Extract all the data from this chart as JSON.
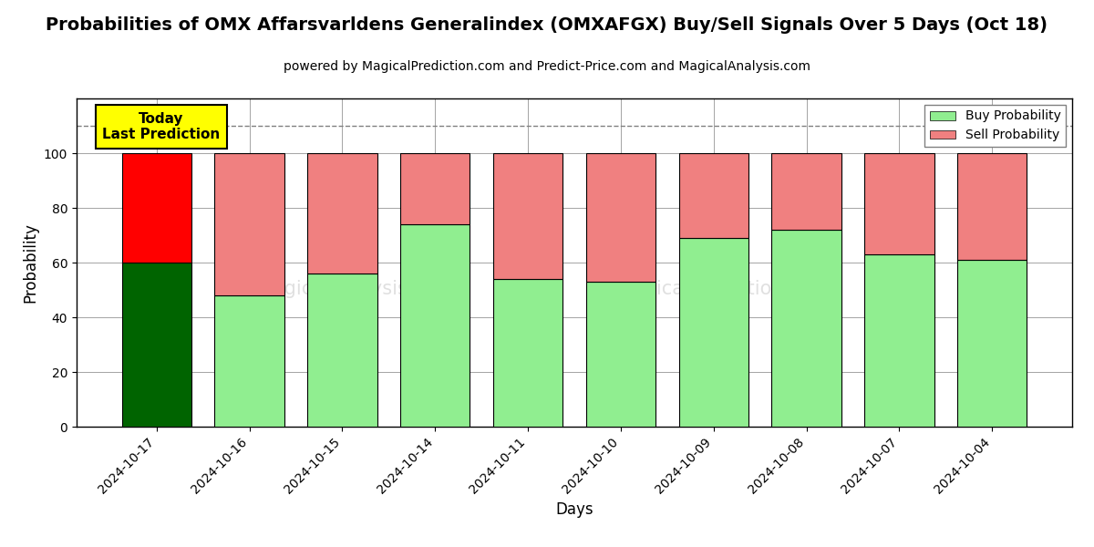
{
  "title": "Probabilities of OMX Affarsvarldens Generalindex (OMXAFGX) Buy/Sell Signals Over 5 Days (Oct 18)",
  "subtitle": "powered by MagicalPrediction.com and Predict-Price.com and MagicalAnalysis.com",
  "xlabel": "Days",
  "ylabel": "Probability",
  "categories": [
    "2024-10-17",
    "2024-10-16",
    "2024-10-15",
    "2024-10-14",
    "2024-10-11",
    "2024-10-10",
    "2024-10-09",
    "2024-10-08",
    "2024-10-07",
    "2024-10-04"
  ],
  "buy_values": [
    60,
    48,
    56,
    74,
    54,
    53,
    69,
    72,
    63,
    61
  ],
  "sell_values": [
    40,
    52,
    44,
    26,
    46,
    47,
    31,
    28,
    37,
    39
  ],
  "today_buy_color": "#006400",
  "today_sell_color": "#FF0000",
  "buy_color": "#90EE90",
  "sell_color": "#F08080",
  "today_annotation_bg": "#FFFF00",
  "today_annotation_text": "Today\nLast Prediction",
  "ylim": [
    0,
    120
  ],
  "yticks": [
    0,
    20,
    40,
    60,
    80,
    100
  ],
  "dashed_line_y": 110,
  "legend_buy_label": "Buy Probability",
  "legend_sell_label": "Sell Probability",
  "title_fontsize": 14,
  "subtitle_fontsize": 10,
  "axis_label_fontsize": 12
}
